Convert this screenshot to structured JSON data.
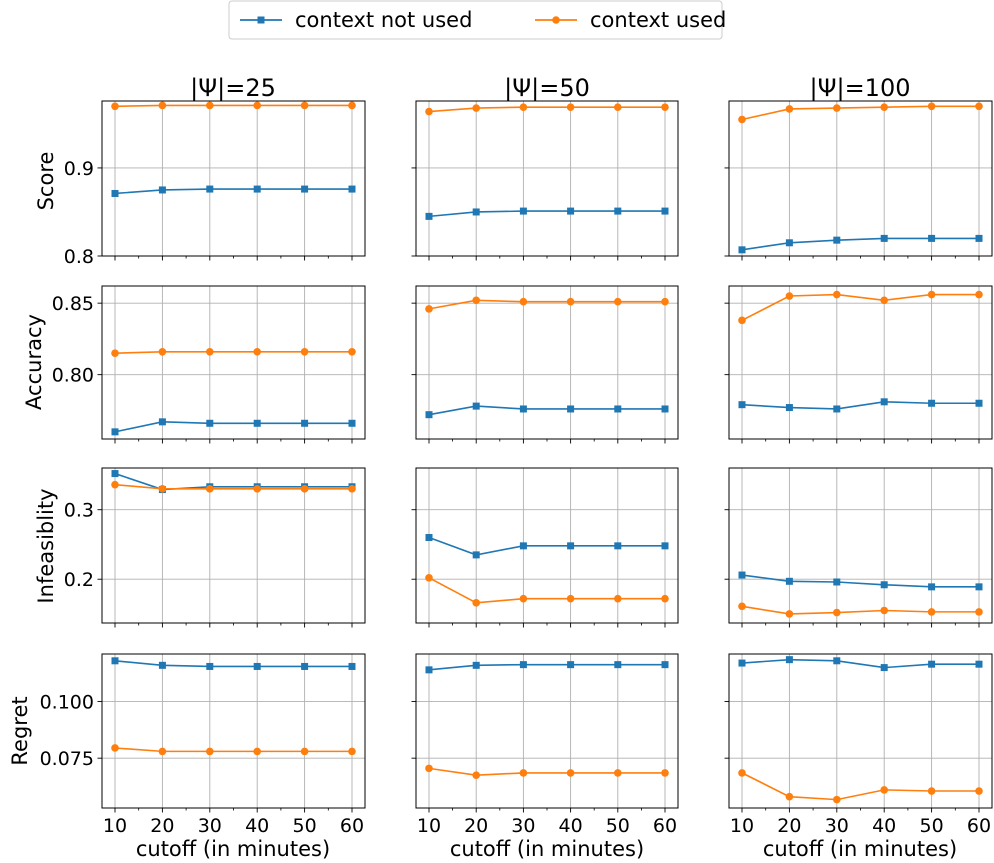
{
  "legend": {
    "entries": [
      {
        "label": "context not used",
        "color": "#1f77b4",
        "marker": "square"
      },
      {
        "label": "context used",
        "color": "#ff7f0e",
        "marker": "circle"
      }
    ]
  },
  "column_titles": [
    "|Ψ|=25",
    "|Ψ|=50",
    "|Ψ|=100"
  ],
  "row_ylabels": [
    "Score",
    "Accuracy",
    "Infeasiblity",
    "Regret"
  ],
  "xlabel": "cutoff (in minutes)",
  "x_ticks": [
    10,
    20,
    30,
    40,
    50,
    60
  ],
  "chart_data": {
    "type": "line",
    "layout": "4 rows x 3 columns, shared x and shared y per row",
    "x": [
      10,
      20,
      30,
      40,
      50,
      60
    ],
    "x_ticks": [
      10,
      20,
      30,
      40,
      50,
      60
    ],
    "xlabel": "cutoff (in minutes)",
    "grid": true,
    "legend_placement": "top-center",
    "series_names": [
      "context not used",
      "context used"
    ],
    "series_colors": [
      "#1f77b4",
      "#ff7f0e"
    ],
    "series_markers": [
      "square",
      "circle"
    ],
    "columns": [
      "|Ψ|=25",
      "|Ψ|=50",
      "|Ψ|=100"
    ],
    "rows": [
      {
        "ylabel": "Score",
        "ylim": [
          0.8,
          0.976
        ],
        "yticks": [
          0.8,
          0.9
        ],
        "ytick_labels": [
          "0.8",
          "0.9"
        ],
        "panels": [
          [
            [
              0.871,
              0.875,
              0.876,
              0.876,
              0.876,
              0.876
            ],
            [
              0.97,
              0.971,
              0.971,
              0.971,
              0.971,
              0.971
            ]
          ],
          [
            [
              0.845,
              0.85,
              0.851,
              0.851,
              0.851,
              0.851
            ],
            [
              0.964,
              0.968,
              0.969,
              0.969,
              0.969,
              0.969
            ]
          ],
          [
            [
              0.807,
              0.815,
              0.818,
              0.82,
              0.82,
              0.82
            ],
            [
              0.955,
              0.967,
              0.968,
              0.969,
              0.97,
              0.97
            ]
          ]
        ]
      },
      {
        "ylabel": "Accuracy",
        "ylim": [
          0.755,
          0.862
        ],
        "yticks": [
          0.8,
          0.85
        ],
        "ytick_labels": [
          "0.80",
          "0.85"
        ],
        "panels": [
          [
            [
              0.76,
              0.767,
              0.766,
              0.766,
              0.766,
              0.766
            ],
            [
              0.815,
              0.816,
              0.816,
              0.816,
              0.816,
              0.816
            ]
          ],
          [
            [
              0.772,
              0.778,
              0.776,
              0.776,
              0.776,
              0.776
            ],
            [
              0.846,
              0.852,
              0.851,
              0.851,
              0.851,
              0.851
            ]
          ],
          [
            [
              0.779,
              0.777,
              0.776,
              0.781,
              0.78,
              0.78
            ],
            [
              0.838,
              0.855,
              0.856,
              0.852,
              0.856,
              0.856
            ]
          ]
        ]
      },
      {
        "ylabel": "Infeasiblity",
        "ylim": [
          0.137,
          0.36
        ],
        "yticks": [
          0.2,
          0.3
        ],
        "ytick_labels": [
          "0.2",
          "0.3"
        ],
        "panels": [
          [
            [
              0.352,
              0.329,
              0.333,
              0.333,
              0.333,
              0.333
            ],
            [
              0.336,
              0.33,
              0.33,
              0.33,
              0.33,
              0.33
            ]
          ],
          [
            [
              0.26,
              0.235,
              0.248,
              0.248,
              0.248,
              0.248
            ],
            [
              0.202,
              0.166,
              0.172,
              0.172,
              0.172,
              0.172
            ]
          ],
          [
            [
              0.206,
              0.197,
              0.196,
              0.192,
              0.189,
              0.189
            ],
            [
              0.161,
              0.15,
              0.152,
              0.155,
              0.153,
              0.153
            ]
          ]
        ]
      },
      {
        "ylabel": "Regret",
        "ylim": [
          0.053,
          0.121
        ],
        "yticks": [
          0.075,
          0.1
        ],
        "ytick_labels": [
          "0.075",
          "0.100"
        ],
        "panels": [
          [
            [
              0.118,
              0.116,
              0.1155,
              0.1155,
              0.1155,
              0.1155
            ],
            [
              0.0795,
              0.078,
              0.078,
              0.078,
              0.078,
              0.078
            ]
          ],
          [
            [
              0.114,
              0.116,
              0.1163,
              0.1163,
              0.1163,
              0.1163
            ],
            [
              0.0705,
              0.0675,
              0.0685,
              0.0685,
              0.0685,
              0.0685
            ]
          ],
          [
            [
              0.117,
              0.1185,
              0.118,
              0.115,
              0.1165,
              0.1165
            ],
            [
              0.0685,
              0.058,
              0.0567,
              0.061,
              0.0605,
              0.0605
            ]
          ]
        ]
      }
    ]
  }
}
